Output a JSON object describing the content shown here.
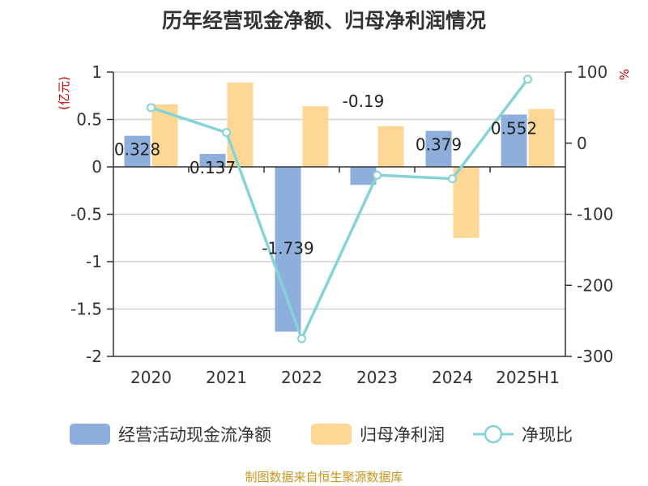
{
  "chart_data": {
    "type": "bar+line",
    "title": "历年经营现金净额、归母净利润情况",
    "categories": [
      "2020",
      "2021",
      "2022",
      "2023",
      "2024",
      "2025H1"
    ],
    "y_left": {
      "unit": "(亿元)",
      "ylim": [
        -2,
        1
      ],
      "ticks": [
        1,
        0.5,
        0,
        -0.5,
        -1,
        -1.5,
        -2
      ]
    },
    "y_right": {
      "unit": "%",
      "ylim": [
        -300,
        100
      ],
      "ticks": [
        100,
        0,
        -100,
        -200,
        -300
      ]
    },
    "series": [
      {
        "name": "经营活动现金流净额",
        "type": "bar",
        "axis": "left",
        "color": "#8eaedc",
        "values": [
          0.328,
          0.137,
          -1.739,
          -0.19,
          0.379,
          0.552
        ],
        "labels": [
          "0.328",
          "0.137",
          "-1.739",
          "-0.19",
          "0.379",
          "0.552"
        ]
      },
      {
        "name": "归母净利润",
        "type": "bar",
        "axis": "left",
        "color": "#fdd795",
        "values": [
          0.66,
          0.89,
          0.64,
          0.43,
          -0.75,
          0.61
        ]
      },
      {
        "name": "净现比",
        "type": "line",
        "axis": "right",
        "color": "#86d3d7",
        "values": [
          50,
          15,
          -275,
          -45,
          -50,
          90
        ]
      }
    ],
    "grid": true,
    "legend": "bottom"
  },
  "source": "制图数据来自恒生聚源数据库"
}
